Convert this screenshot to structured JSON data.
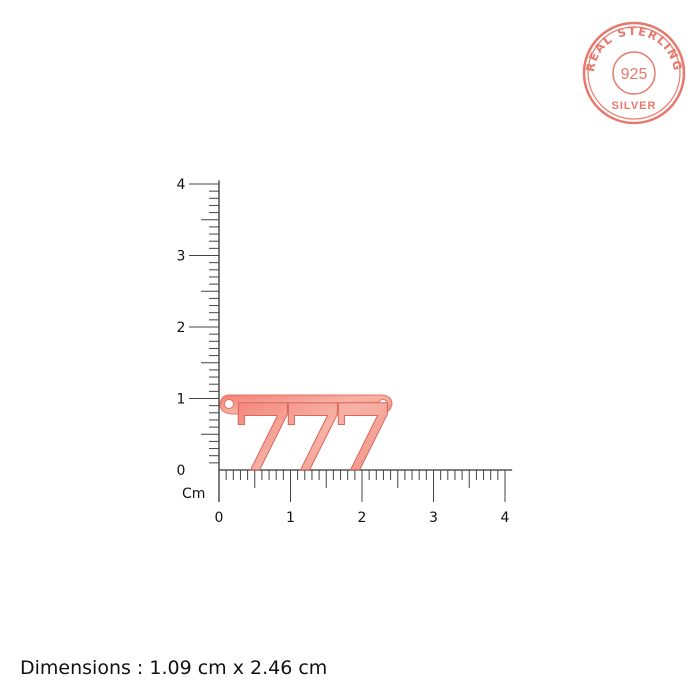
{
  "ruler": {
    "unit_label": "Cm",
    "x_ticks": [
      "0",
      "1",
      "2",
      "3",
      "4"
    ],
    "y_ticks": [
      "0",
      "1",
      "2",
      "3",
      "4"
    ]
  },
  "product": {
    "name_text": "777",
    "color": "#f08a7e"
  },
  "stamp": {
    "top_text": "REAL STERLING",
    "center_text": "925",
    "bottom_text": "SILVER",
    "color": "#e8786c"
  },
  "caption": "Dimensions : 1.09 cm x 2.46 cm"
}
